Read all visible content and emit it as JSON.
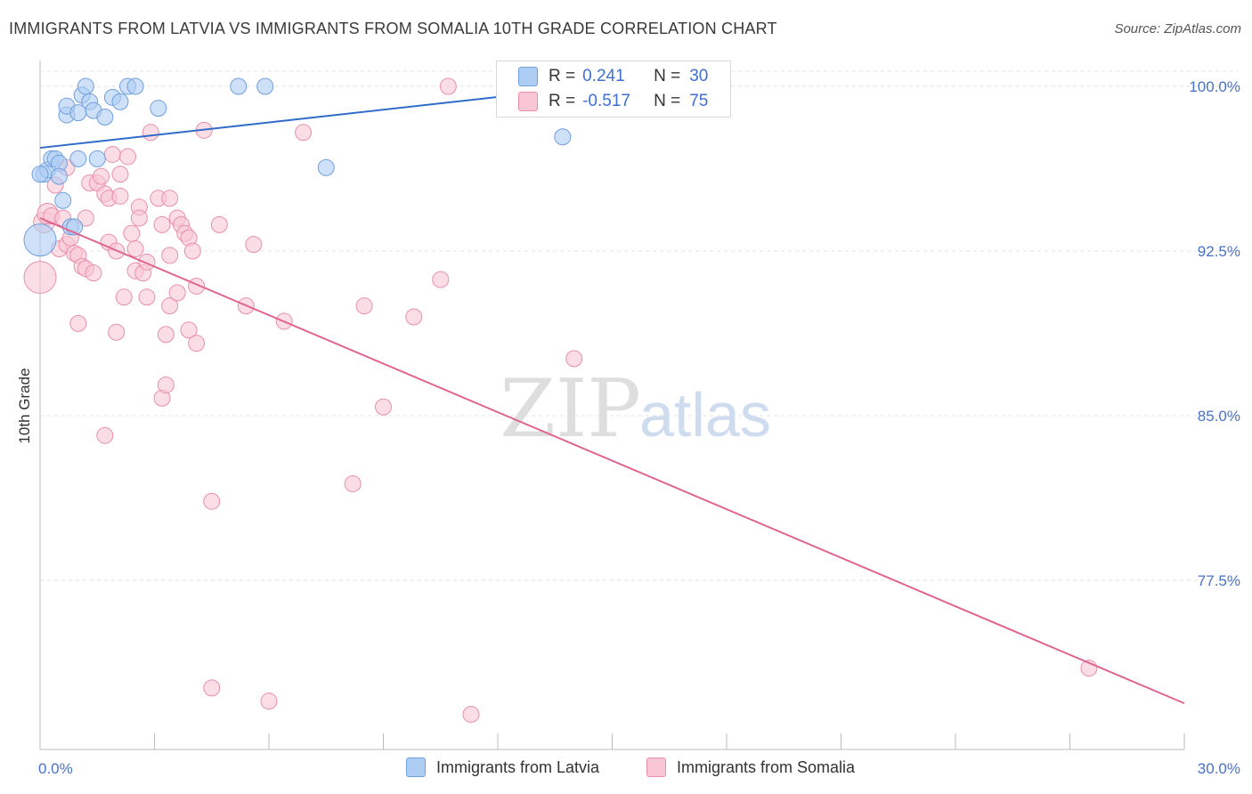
{
  "title": "IMMIGRANTS FROM LATVIA VS IMMIGRANTS FROM SOMALIA 10TH GRADE CORRELATION CHART",
  "source": "Source: ZipAtlas.com",
  "watermark": {
    "zip": "ZIP",
    "atlas": "atlas"
  },
  "legend": {
    "rows": [
      {
        "r_label": "R =",
        "r_value": "0.241",
        "n_label": "N =",
        "n_value": "30"
      },
      {
        "r_label": "R =",
        "r_value": "-0.517",
        "n_label": "N =",
        "n_value": "75"
      }
    ]
  },
  "bottom_legend": {
    "latvia": "Immigrants from Latvia",
    "somalia": "Immigrants from Somalia"
  },
  "chart_data": {
    "type": "scatter",
    "title": "IMMIGRANTS FROM LATVIA VS IMMIGRANTS FROM SOMALIA 10TH GRADE CORRELATION CHART",
    "xlabel": "",
    "ylabel": "10th Grade",
    "xlim": [
      0,
      30
    ],
    "ylim": [
      70.5,
      101.5
    ],
    "x_tick_labels": [
      "0.0%",
      "30.0%"
    ],
    "y_ticks": [
      100,
      92.5,
      85,
      77.5
    ],
    "y_tick_labels": [
      "100.0%",
      "92.5%",
      "85.0%",
      "77.5%"
    ],
    "colors": {
      "latvia": "#6f9fde",
      "latvia_fill": "#aecdf3",
      "latvia_line": "#2f6bc9",
      "somalia": "#e98fab",
      "somalia_fill": "#f8c6d4",
      "somalia_line": "#e0648f",
      "grid": "#e3e3e3",
      "axis_label": "#4a72c4"
    },
    "series": [
      {
        "name": "Immigrants from Latvia",
        "points": [
          [
            0.0,
            93.0,
            2.0
          ],
          [
            0.1,
            96.0,
            1
          ],
          [
            0.2,
            96.2,
            1
          ],
          [
            0.3,
            96.7,
            1
          ],
          [
            0.4,
            96.7,
            1
          ],
          [
            0.5,
            96.5,
            1
          ],
          [
            0.5,
            95.9,
            1
          ],
          [
            0.6,
            94.8,
            1
          ],
          [
            0.7,
            98.7,
            1
          ],
          [
            0.7,
            99.1,
            1
          ],
          [
            0.8,
            93.6,
            1
          ],
          [
            0.9,
            93.6,
            1
          ],
          [
            1.0,
            98.8,
            1
          ],
          [
            1.0,
            96.7,
            1
          ],
          [
            1.1,
            99.6,
            1
          ],
          [
            1.2,
            100.0,
            1
          ],
          [
            1.3,
            99.3,
            1
          ],
          [
            1.4,
            98.9,
            1
          ],
          [
            1.5,
            96.7,
            1
          ],
          [
            1.7,
            98.6,
            1
          ],
          [
            1.9,
            99.5,
            1
          ],
          [
            2.1,
            99.3,
            1
          ],
          [
            2.3,
            100.0,
            1
          ],
          [
            2.5,
            100.0,
            1
          ],
          [
            3.1,
            99.0,
            1
          ],
          [
            5.2,
            100.0,
            1
          ],
          [
            5.9,
            100.0,
            1
          ],
          [
            7.5,
            96.3,
            1
          ],
          [
            13.7,
            97.7,
            1
          ],
          [
            0.0,
            96.0,
            1
          ]
        ],
        "trend": {
          "x": [
            0,
            14.5
          ],
          "y": [
            97.2,
            100.0
          ]
        }
      },
      {
        "name": "Immigrants from Somalia",
        "points": [
          [
            0.0,
            91.3,
            2.0
          ],
          [
            0.1,
            93.8,
            1.3
          ],
          [
            0.2,
            94.2,
            1.3
          ],
          [
            0.3,
            94.1,
            1
          ],
          [
            0.4,
            95.5,
            1
          ],
          [
            0.5,
            92.6,
            1
          ],
          [
            0.6,
            94.0,
            1
          ],
          [
            0.7,
            92.8,
            1
          ],
          [
            0.7,
            96.3,
            1
          ],
          [
            0.8,
            93.1,
            1
          ],
          [
            0.9,
            92.4,
            1
          ],
          [
            1.0,
            92.3,
            1
          ],
          [
            1.0,
            89.2,
            1
          ],
          [
            1.1,
            91.8,
            1
          ],
          [
            1.2,
            94.0,
            1
          ],
          [
            1.2,
            91.7,
            1
          ],
          [
            1.3,
            95.6,
            1
          ],
          [
            1.4,
            91.5,
            1
          ],
          [
            1.5,
            95.6,
            1
          ],
          [
            1.6,
            95.9,
            1
          ],
          [
            1.7,
            95.1,
            1
          ],
          [
            1.7,
            84.1,
            1
          ],
          [
            1.8,
            94.9,
            1
          ],
          [
            1.8,
            92.9,
            1
          ],
          [
            1.9,
            96.9,
            1
          ],
          [
            2.0,
            92.5,
            1
          ],
          [
            2.1,
            95.0,
            1
          ],
          [
            2.1,
            96.0,
            1
          ],
          [
            2.2,
            90.4,
            1
          ],
          [
            2.3,
            96.8,
            1
          ],
          [
            2.4,
            93.3,
            1
          ],
          [
            2.5,
            92.6,
            1
          ],
          [
            2.5,
            91.6,
            1
          ],
          [
            2.6,
            94.5,
            1
          ],
          [
            2.6,
            94.0,
            1
          ],
          [
            2.7,
            91.5,
            1
          ],
          [
            2.8,
            92.0,
            1
          ],
          [
            2.8,
            90.4,
            1
          ],
          [
            2.9,
            97.9,
            1
          ],
          [
            3.1,
            94.9,
            1
          ],
          [
            3.2,
            93.7,
            1
          ],
          [
            3.2,
            85.8,
            1
          ],
          [
            3.3,
            86.4,
            1
          ],
          [
            3.3,
            88.7,
            1
          ],
          [
            3.4,
            90.0,
            1
          ],
          [
            3.4,
            92.3,
            1
          ],
          [
            3.6,
            94.0,
            1
          ],
          [
            3.6,
            90.6,
            1
          ],
          [
            3.7,
            93.7,
            1
          ],
          [
            3.8,
            93.3,
            1
          ],
          [
            3.9,
            88.9,
            1
          ],
          [
            3.9,
            93.1,
            1
          ],
          [
            4.0,
            92.5,
            1
          ],
          [
            4.1,
            90.9,
            1
          ],
          [
            4.1,
            88.3,
            1
          ],
          [
            4.3,
            98.0,
            1
          ],
          [
            4.5,
            81.1,
            1
          ],
          [
            4.5,
            72.6,
            1
          ],
          [
            4.7,
            93.7,
            1
          ],
          [
            5.4,
            90.0,
            1
          ],
          [
            5.6,
            92.8,
            1
          ],
          [
            6.0,
            72.0,
            1
          ],
          [
            6.4,
            89.3,
            1
          ],
          [
            6.9,
            97.9,
            1
          ],
          [
            8.2,
            81.9,
            1
          ],
          [
            8.5,
            90.0,
            1
          ],
          [
            9.0,
            85.4,
            1
          ],
          [
            9.8,
            89.5,
            1
          ],
          [
            10.5,
            91.2,
            1
          ],
          [
            10.7,
            100.0,
            1
          ],
          [
            11.3,
            71.4,
            1
          ],
          [
            14.0,
            87.6,
            1
          ],
          [
            27.5,
            73.5,
            1
          ],
          [
            3.4,
            94.9,
            1
          ],
          [
            2.0,
            88.8,
            1
          ]
        ],
        "trend": {
          "x": [
            0,
            30
          ],
          "y": [
            94.0,
            71.9
          ]
        }
      }
    ]
  }
}
